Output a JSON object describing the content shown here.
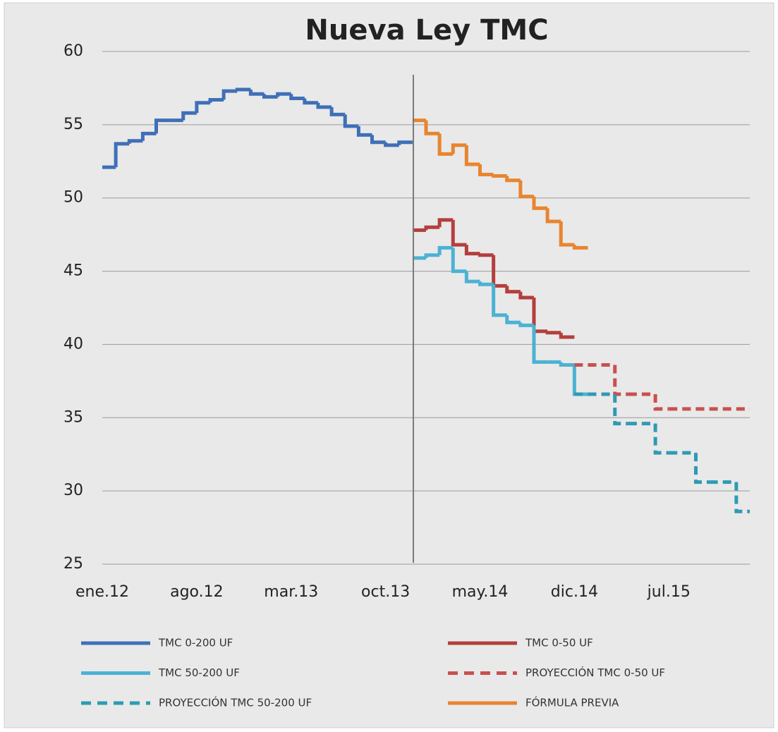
{
  "chart_data": {
    "type": "step-line",
    "title": "Nueva Ley TMC",
    "categories": [
      "ene.12",
      null,
      null,
      null,
      null,
      null,
      null,
      "ago.12",
      null,
      null,
      null,
      null,
      null,
      null,
      "mar.13",
      null,
      null,
      null,
      null,
      null,
      null,
      "oct.13",
      null,
      null,
      null,
      null,
      null,
      null,
      "may.14",
      null,
      null,
      null,
      null,
      null,
      null,
      "dic.14",
      null,
      null,
      null,
      null,
      null,
      null,
      "jul.15",
      null,
      null,
      null,
      null,
      null
    ],
    "ylim": [
      25,
      60
    ],
    "yticks": [
      25,
      30,
      35,
      40,
      45,
      50,
      55,
      60
    ],
    "grid": true,
    "series": [
      {
        "name": "TMC 0-200 UF",
        "color": "#3f6fb8",
        "line_style": "solid",
        "values": [
          52.1,
          53.7,
          53.9,
          54.4,
          55.3,
          55.3,
          55.8,
          56.5,
          56.7,
          57.3,
          57.4,
          57.1,
          56.9,
          57.1,
          56.8,
          56.5,
          56.2,
          55.7,
          54.9,
          54.3,
          53.8,
          53.6,
          53.8,
          null,
          null,
          null,
          null,
          null,
          null,
          null,
          null,
          null,
          null,
          null,
          null,
          null,
          null,
          null,
          null,
          null,
          null,
          null,
          null,
          null,
          null,
          null,
          null,
          null
        ]
      },
      {
        "name": "TMC 0-50 UF",
        "color": "#b33f3d",
        "line_style": "solid",
        "values": [
          null,
          null,
          null,
          null,
          null,
          null,
          null,
          null,
          null,
          null,
          null,
          null,
          null,
          null,
          null,
          null,
          null,
          null,
          null,
          null,
          null,
          null,
          null,
          47.8,
          48.0,
          48.5,
          46.8,
          46.2,
          46.1,
          44.0,
          43.6,
          43.2,
          40.9,
          40.8,
          40.5,
          null,
          null,
          null,
          null,
          null,
          null,
          null,
          null,
          null,
          null,
          null,
          null,
          null
        ]
      },
      {
        "name": "TMC 50-200 UF",
        "color": "#4bb2d3",
        "line_style": "solid",
        "values": [
          null,
          null,
          null,
          null,
          null,
          null,
          null,
          null,
          null,
          null,
          null,
          null,
          null,
          null,
          null,
          null,
          null,
          null,
          null,
          null,
          null,
          null,
          null,
          45.9,
          46.1,
          46.6,
          45.0,
          44.3,
          44.1,
          42.0,
          41.5,
          41.3,
          38.8,
          38.8,
          38.6,
          36.6,
          null,
          null,
          null,
          null,
          null,
          null,
          null,
          null,
          null,
          null,
          null,
          null
        ]
      },
      {
        "name": "PROYECCIÓN TMC 0-50 UF",
        "color": "#c9504e",
        "line_style": "dashed",
        "values": [
          null,
          null,
          null,
          null,
          null,
          null,
          null,
          null,
          null,
          null,
          null,
          null,
          null,
          null,
          null,
          null,
          null,
          null,
          null,
          null,
          null,
          null,
          null,
          null,
          null,
          null,
          null,
          null,
          null,
          null,
          null,
          null,
          null,
          null,
          null,
          38.6,
          38.6,
          38.6,
          36.6,
          36.6,
          36.6,
          35.6,
          35.6,
          35.6,
          35.6,
          35.6,
          35.6,
          35.6
        ]
      },
      {
        "name": "PROYECCIÓN TMC 50-200 UF",
        "color": "#2f9ab3",
        "line_style": "dashed",
        "values": [
          null,
          null,
          null,
          null,
          null,
          null,
          null,
          null,
          null,
          null,
          null,
          null,
          null,
          null,
          null,
          null,
          null,
          null,
          null,
          null,
          null,
          null,
          null,
          null,
          null,
          null,
          null,
          null,
          null,
          null,
          null,
          null,
          null,
          null,
          null,
          36.6,
          36.6,
          36.6,
          34.6,
          34.6,
          34.6,
          32.6,
          32.6,
          32.6,
          30.6,
          30.6,
          30.6,
          28.6
        ]
      },
      {
        "name": "FÓRMULA PREVIA",
        "color": "#e8852f",
        "line_style": "solid",
        "values": [
          null,
          null,
          null,
          null,
          null,
          null,
          null,
          null,
          null,
          null,
          null,
          null,
          null,
          null,
          null,
          null,
          null,
          null,
          null,
          null,
          null,
          null,
          null,
          55.3,
          54.4,
          53.0,
          53.6,
          52.3,
          51.6,
          51.5,
          51.2,
          50.1,
          49.3,
          48.4,
          46.8,
          46.6,
          null,
          null,
          null,
          null,
          null,
          null,
          null,
          null,
          null,
          null,
          null,
          null
        ]
      }
    ]
  }
}
